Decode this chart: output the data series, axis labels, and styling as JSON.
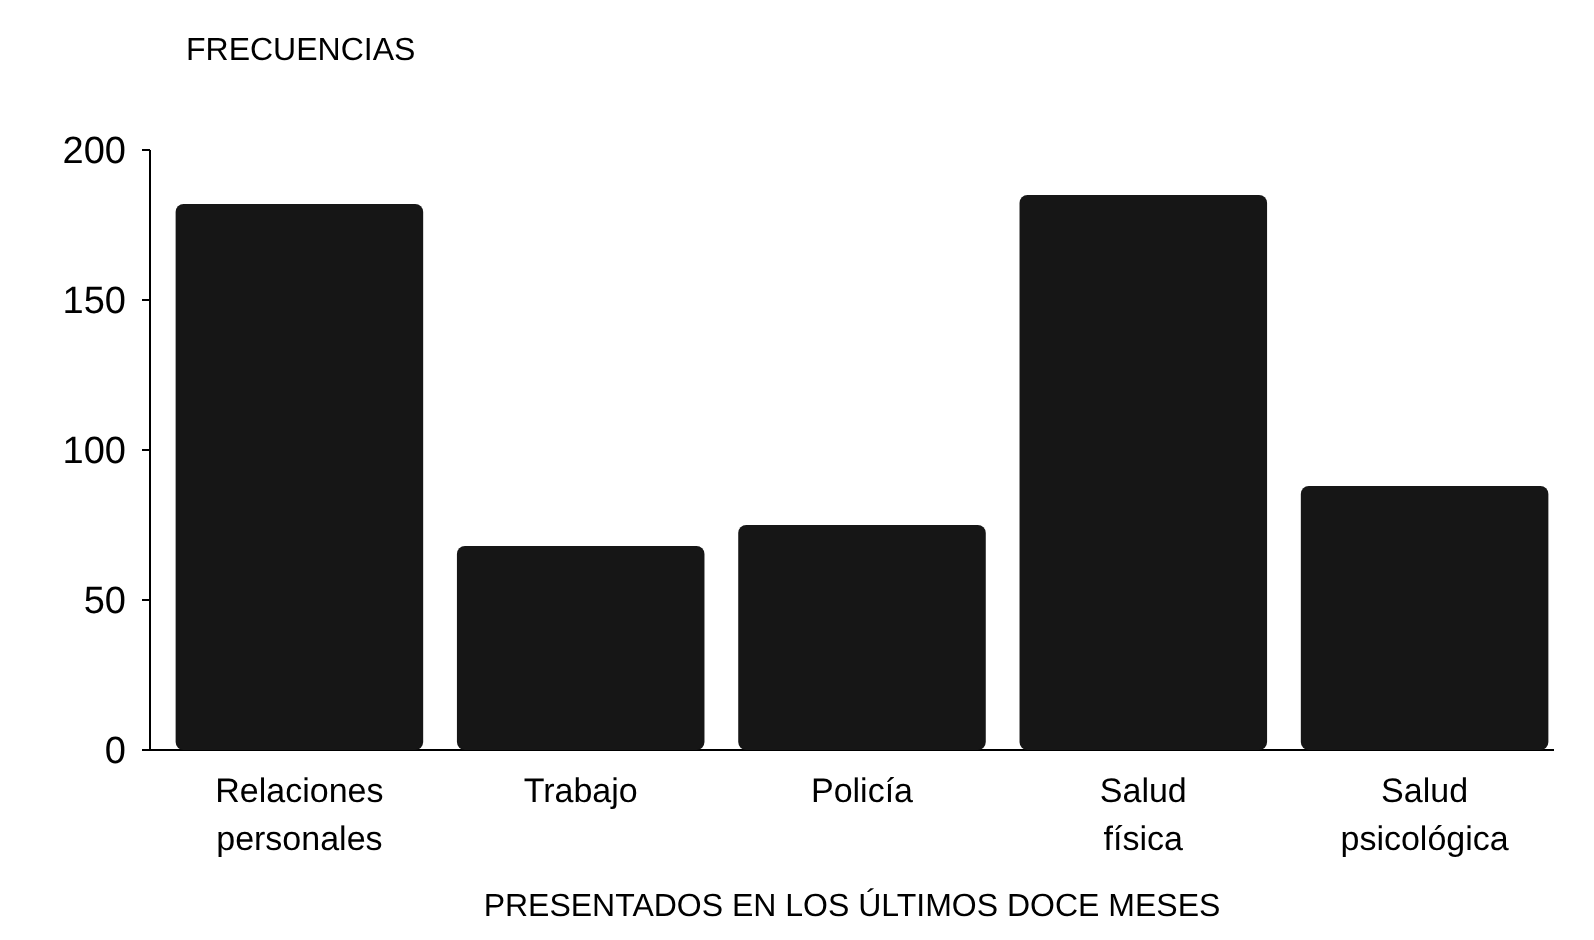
{
  "chart_data": {
    "type": "bar",
    "ylabel": "FRECUENCIAS",
    "xlabel": "PRESENTADOS EN LOS ÚLTIMOS DOCE MESES",
    "categories": [
      "Relaciones personales",
      "Trabajo",
      "Policía",
      "Salud física",
      "Salud psicológica"
    ],
    "values": [
      182,
      68,
      75,
      185,
      88
    ],
    "color": "#161616",
    "ylim": [
      0,
      200
    ],
    "yticks": [
      0,
      50,
      100,
      150,
      200
    ]
  }
}
